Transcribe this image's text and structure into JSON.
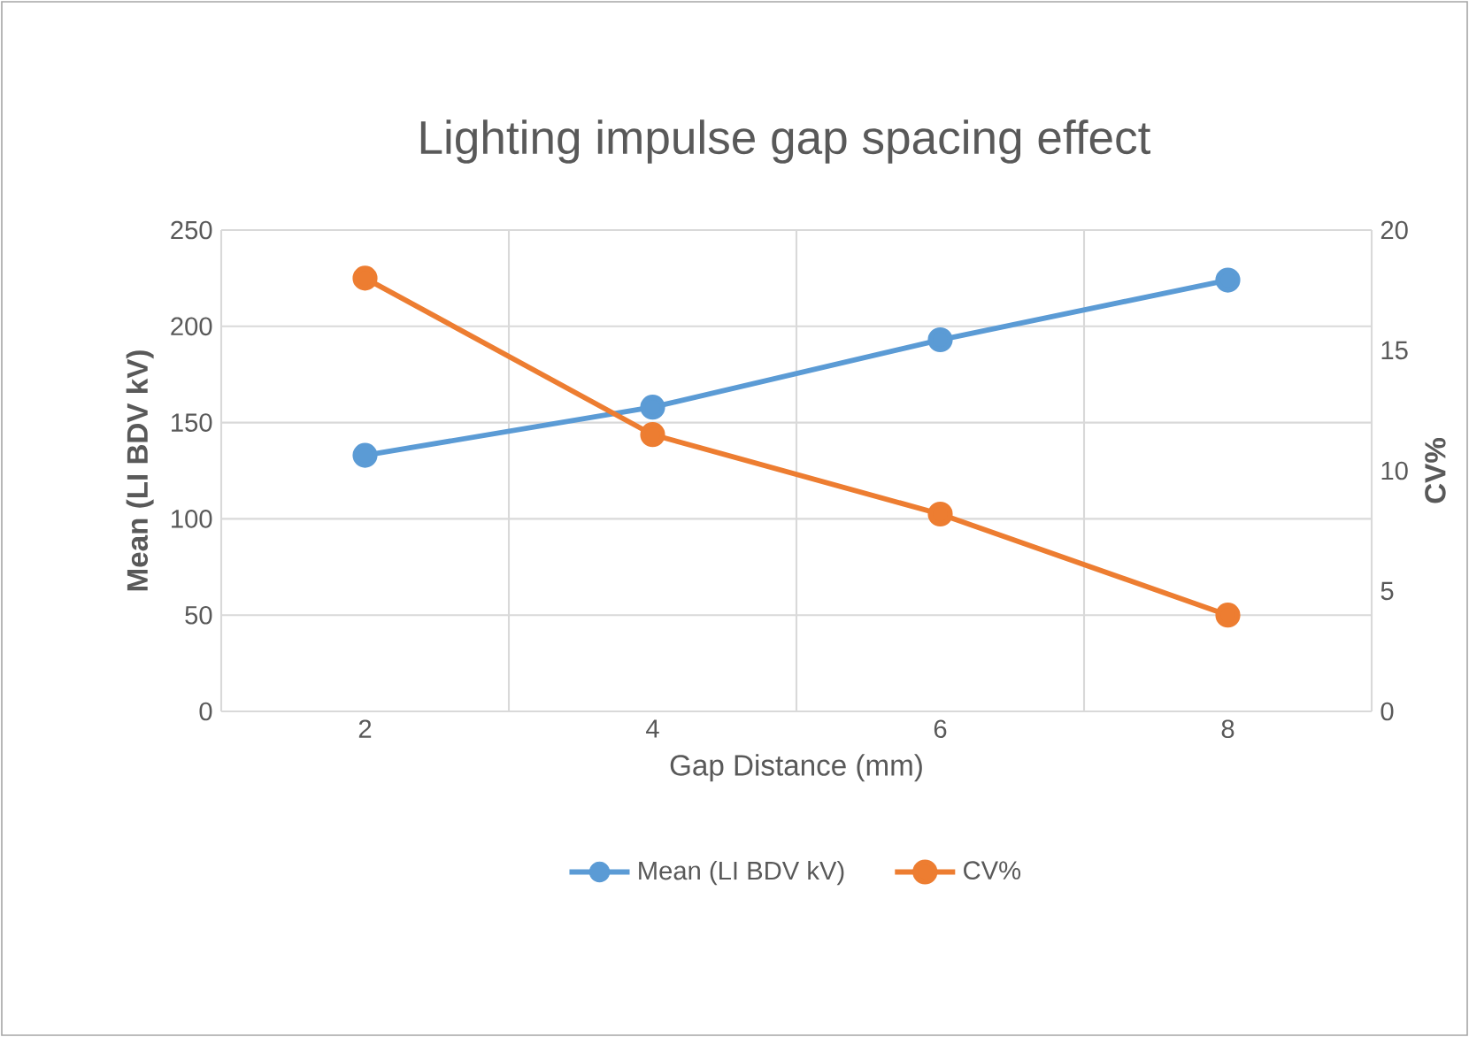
{
  "chart_data": {
    "type": "line",
    "title": "Lighting impulse gap spacing effect",
    "xlabel": "Gap Distance (mm)",
    "ylabel": "Mean (LI BDV kV)",
    "y2label": "CV%",
    "categories": [
      "2",
      "4",
      "6",
      "8"
    ],
    "series": [
      {
        "name": "Mean (LI BDV kV)",
        "color": "#5b9bd5",
        "values": [
          133,
          158,
          193,
          224
        ]
      },
      {
        "name": "CV%",
        "color": "#ed7d31",
        "values": [
          18.0,
          11.5,
          8.2,
          4.0
        ],
        "axis": "y2"
      }
    ],
    "ylim": [
      0,
      250
    ],
    "yticks": [
      0,
      50,
      100,
      150,
      200,
      250
    ],
    "y2lim": [
      0,
      20
    ],
    "y2ticks": [
      0,
      5,
      10,
      15,
      20
    ],
    "grid": true,
    "legend": "bottom",
    "marker": "circle"
  }
}
